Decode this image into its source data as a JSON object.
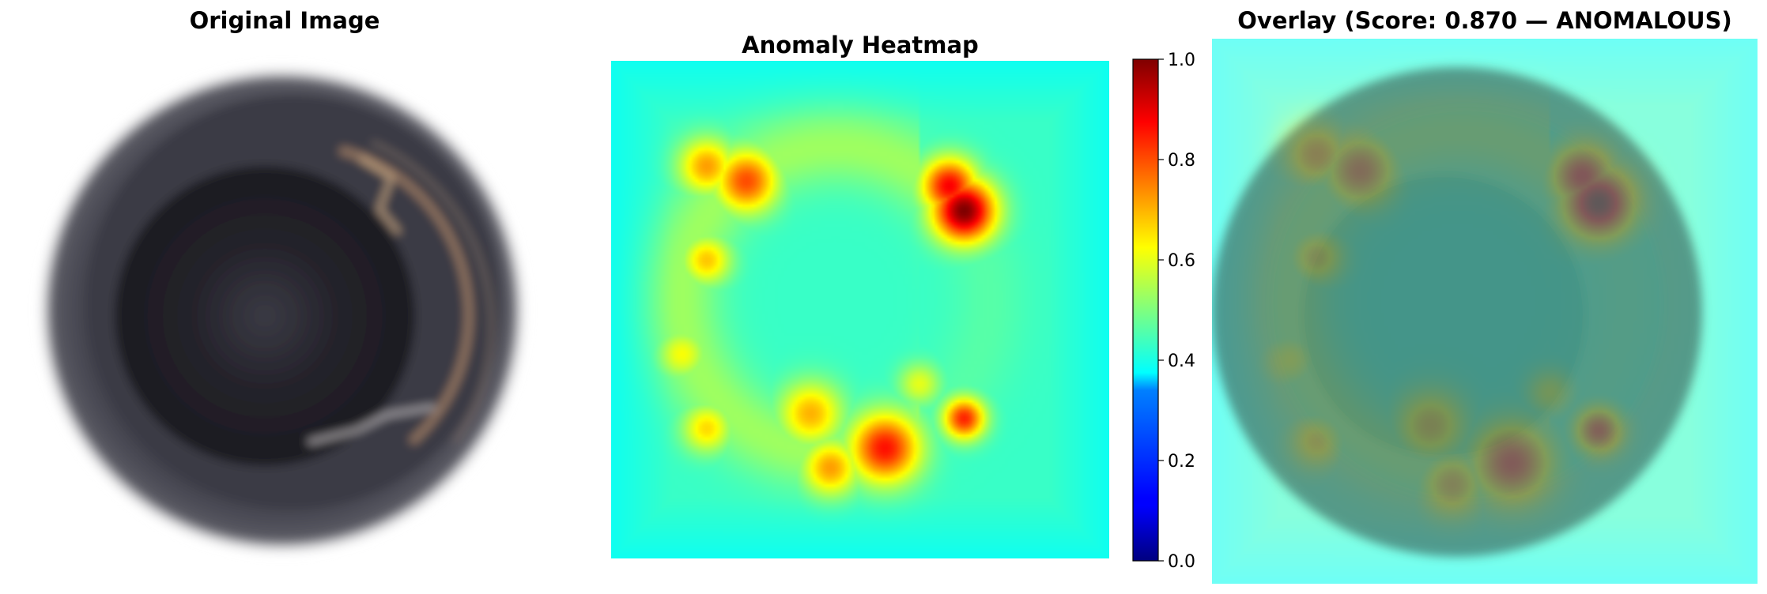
{
  "titles": {
    "original": "Original Image",
    "heatmap": "Anomaly Heatmap",
    "overlay": "Overlay (Score: 0.870 — ANOMALOUS)"
  },
  "chart_data": {
    "type": "heatmap",
    "colormap": "jet",
    "colorbar": {
      "range": [
        0.0,
        1.0
      ],
      "ticks": [
        "0.0",
        "0.2",
        "0.4",
        "0.6",
        "0.8",
        "1.0"
      ]
    },
    "anomaly_score": 0.87,
    "verdict": "ANOMALOUS",
    "background_value": 0.43,
    "hotspots": [
      {
        "u": 0.71,
        "v": 0.3,
        "value": 1.0,
        "spread": 0.045
      },
      {
        "u": 0.68,
        "v": 0.25,
        "value": 0.88,
        "spread": 0.04
      },
      {
        "u": 0.27,
        "v": 0.24,
        "value": 0.8,
        "spread": 0.045
      },
      {
        "u": 0.19,
        "v": 0.21,
        "value": 0.72,
        "spread": 0.04
      },
      {
        "u": 0.19,
        "v": 0.4,
        "value": 0.68,
        "spread": 0.035
      },
      {
        "u": 0.14,
        "v": 0.59,
        "value": 0.62,
        "spread": 0.035
      },
      {
        "u": 0.19,
        "v": 0.74,
        "value": 0.66,
        "spread": 0.035
      },
      {
        "u": 0.4,
        "v": 0.71,
        "value": 0.7,
        "spread": 0.045
      },
      {
        "u": 0.55,
        "v": 0.78,
        "value": 0.86,
        "spread": 0.05
      },
      {
        "u": 0.44,
        "v": 0.82,
        "value": 0.72,
        "spread": 0.04
      },
      {
        "u": 0.71,
        "v": 0.72,
        "value": 0.84,
        "spread": 0.03
      },
      {
        "u": 0.62,
        "v": 0.65,
        "value": 0.6,
        "spread": 0.03
      }
    ]
  }
}
